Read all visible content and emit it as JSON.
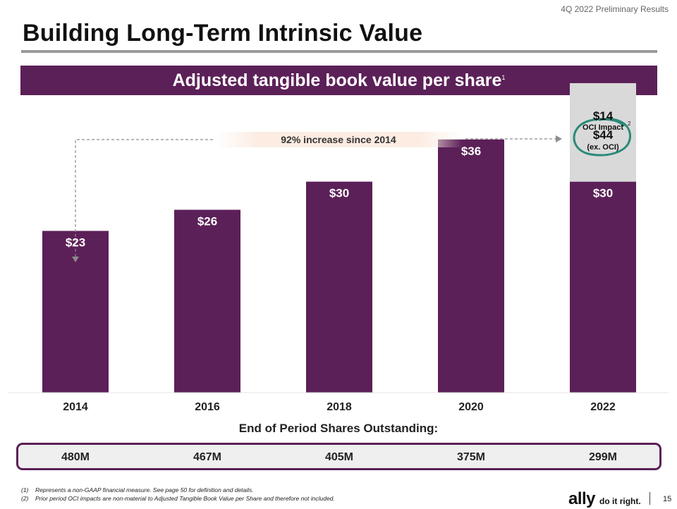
{
  "header_label": "4Q 2022 Preliminary Results",
  "page_title": "Building Long-Term Intrinsic Value",
  "banner": {
    "title": "Adjusted tangible book value per share",
    "superscript": "1"
  },
  "increase_annotation": "92% increase since 2014",
  "colors": {
    "purple": "#5c2058",
    "oci_gray": "#d9d9d9",
    "circle_teal": "#2a8a78",
    "arrow_gray": "#8c8c8c"
  },
  "chart_data": {
    "type": "bar",
    "title": "Adjusted tangible book value per share",
    "categories": [
      "2014",
      "2016",
      "2018",
      "2020",
      "2022"
    ],
    "series": [
      {
        "name": "Adjusted tangible book value per share",
        "values": [
          23,
          26,
          30,
          36,
          30
        ],
        "labels": [
          "$23",
          "$26",
          "$30",
          "$36",
          "$30"
        ]
      },
      {
        "name": "OCI Impact",
        "values": [
          0,
          0,
          0,
          0,
          14
        ],
        "labels": [
          "",
          "",
          "",
          "",
          "$14"
        ]
      }
    ],
    "ylim": [
      0,
      46
    ],
    "total_2022": {
      "value_label": "$44",
      "note": "(ex. OCI)"
    },
    "oci_label": "OCI Impact",
    "oci_superscript": "2"
  },
  "shares": {
    "title": "End of Period Shares Outstanding:",
    "values": [
      "480M",
      "467M",
      "405M",
      "375M",
      "299M"
    ]
  },
  "footnotes": [
    {
      "num": "(1)",
      "text": "Represents a non-GAAP financial measure. See page 50 for definition and details."
    },
    {
      "num": "(2)",
      "text": "Prior period OCI impacts are non-material to Adjusted Tangible Book Value per Share and therefore not included."
    }
  ],
  "logo": {
    "brand": "ally",
    "tagline": "do it right."
  },
  "page_number": "15"
}
